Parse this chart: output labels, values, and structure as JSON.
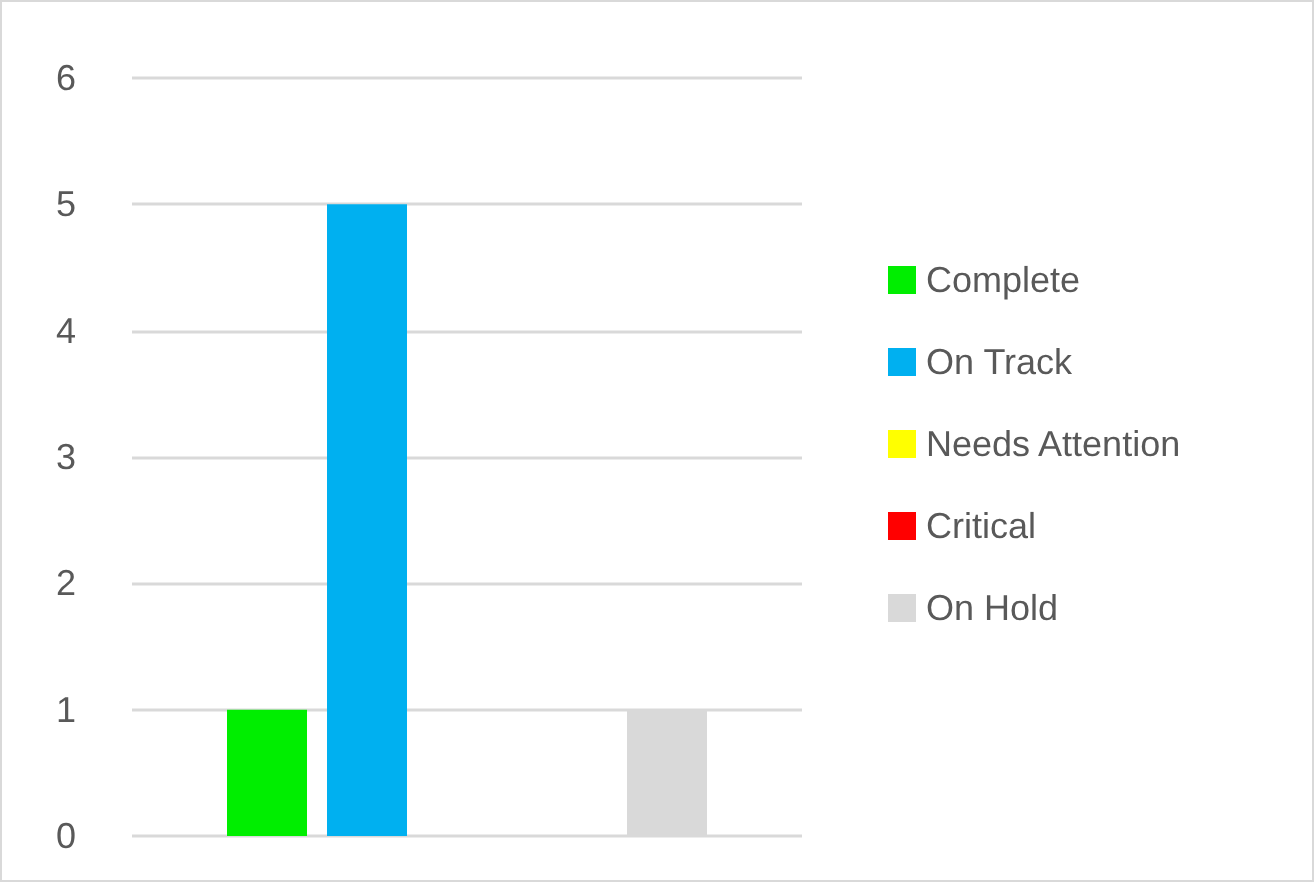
{
  "chart_data": {
    "type": "bar",
    "categories": [
      null
    ],
    "series": [
      {
        "name": "Complete",
        "color": "#00ee00",
        "values": [
          1
        ]
      },
      {
        "name": "On Track",
        "color": "#00b0f0",
        "values": [
          5
        ]
      },
      {
        "name": "Needs Attention",
        "color": "#ffff00",
        "values": [
          0
        ]
      },
      {
        "name": "Critical",
        "color": "#ff0000",
        "values": [
          0
        ]
      },
      {
        "name": "On Hold",
        "color": "#d9d9d9",
        "values": [
          1
        ]
      }
    ],
    "ylim": [
      0,
      6
    ],
    "yticks": [
      0,
      1,
      2,
      3,
      4,
      5,
      6
    ],
    "grid": "y",
    "legend": "right"
  }
}
